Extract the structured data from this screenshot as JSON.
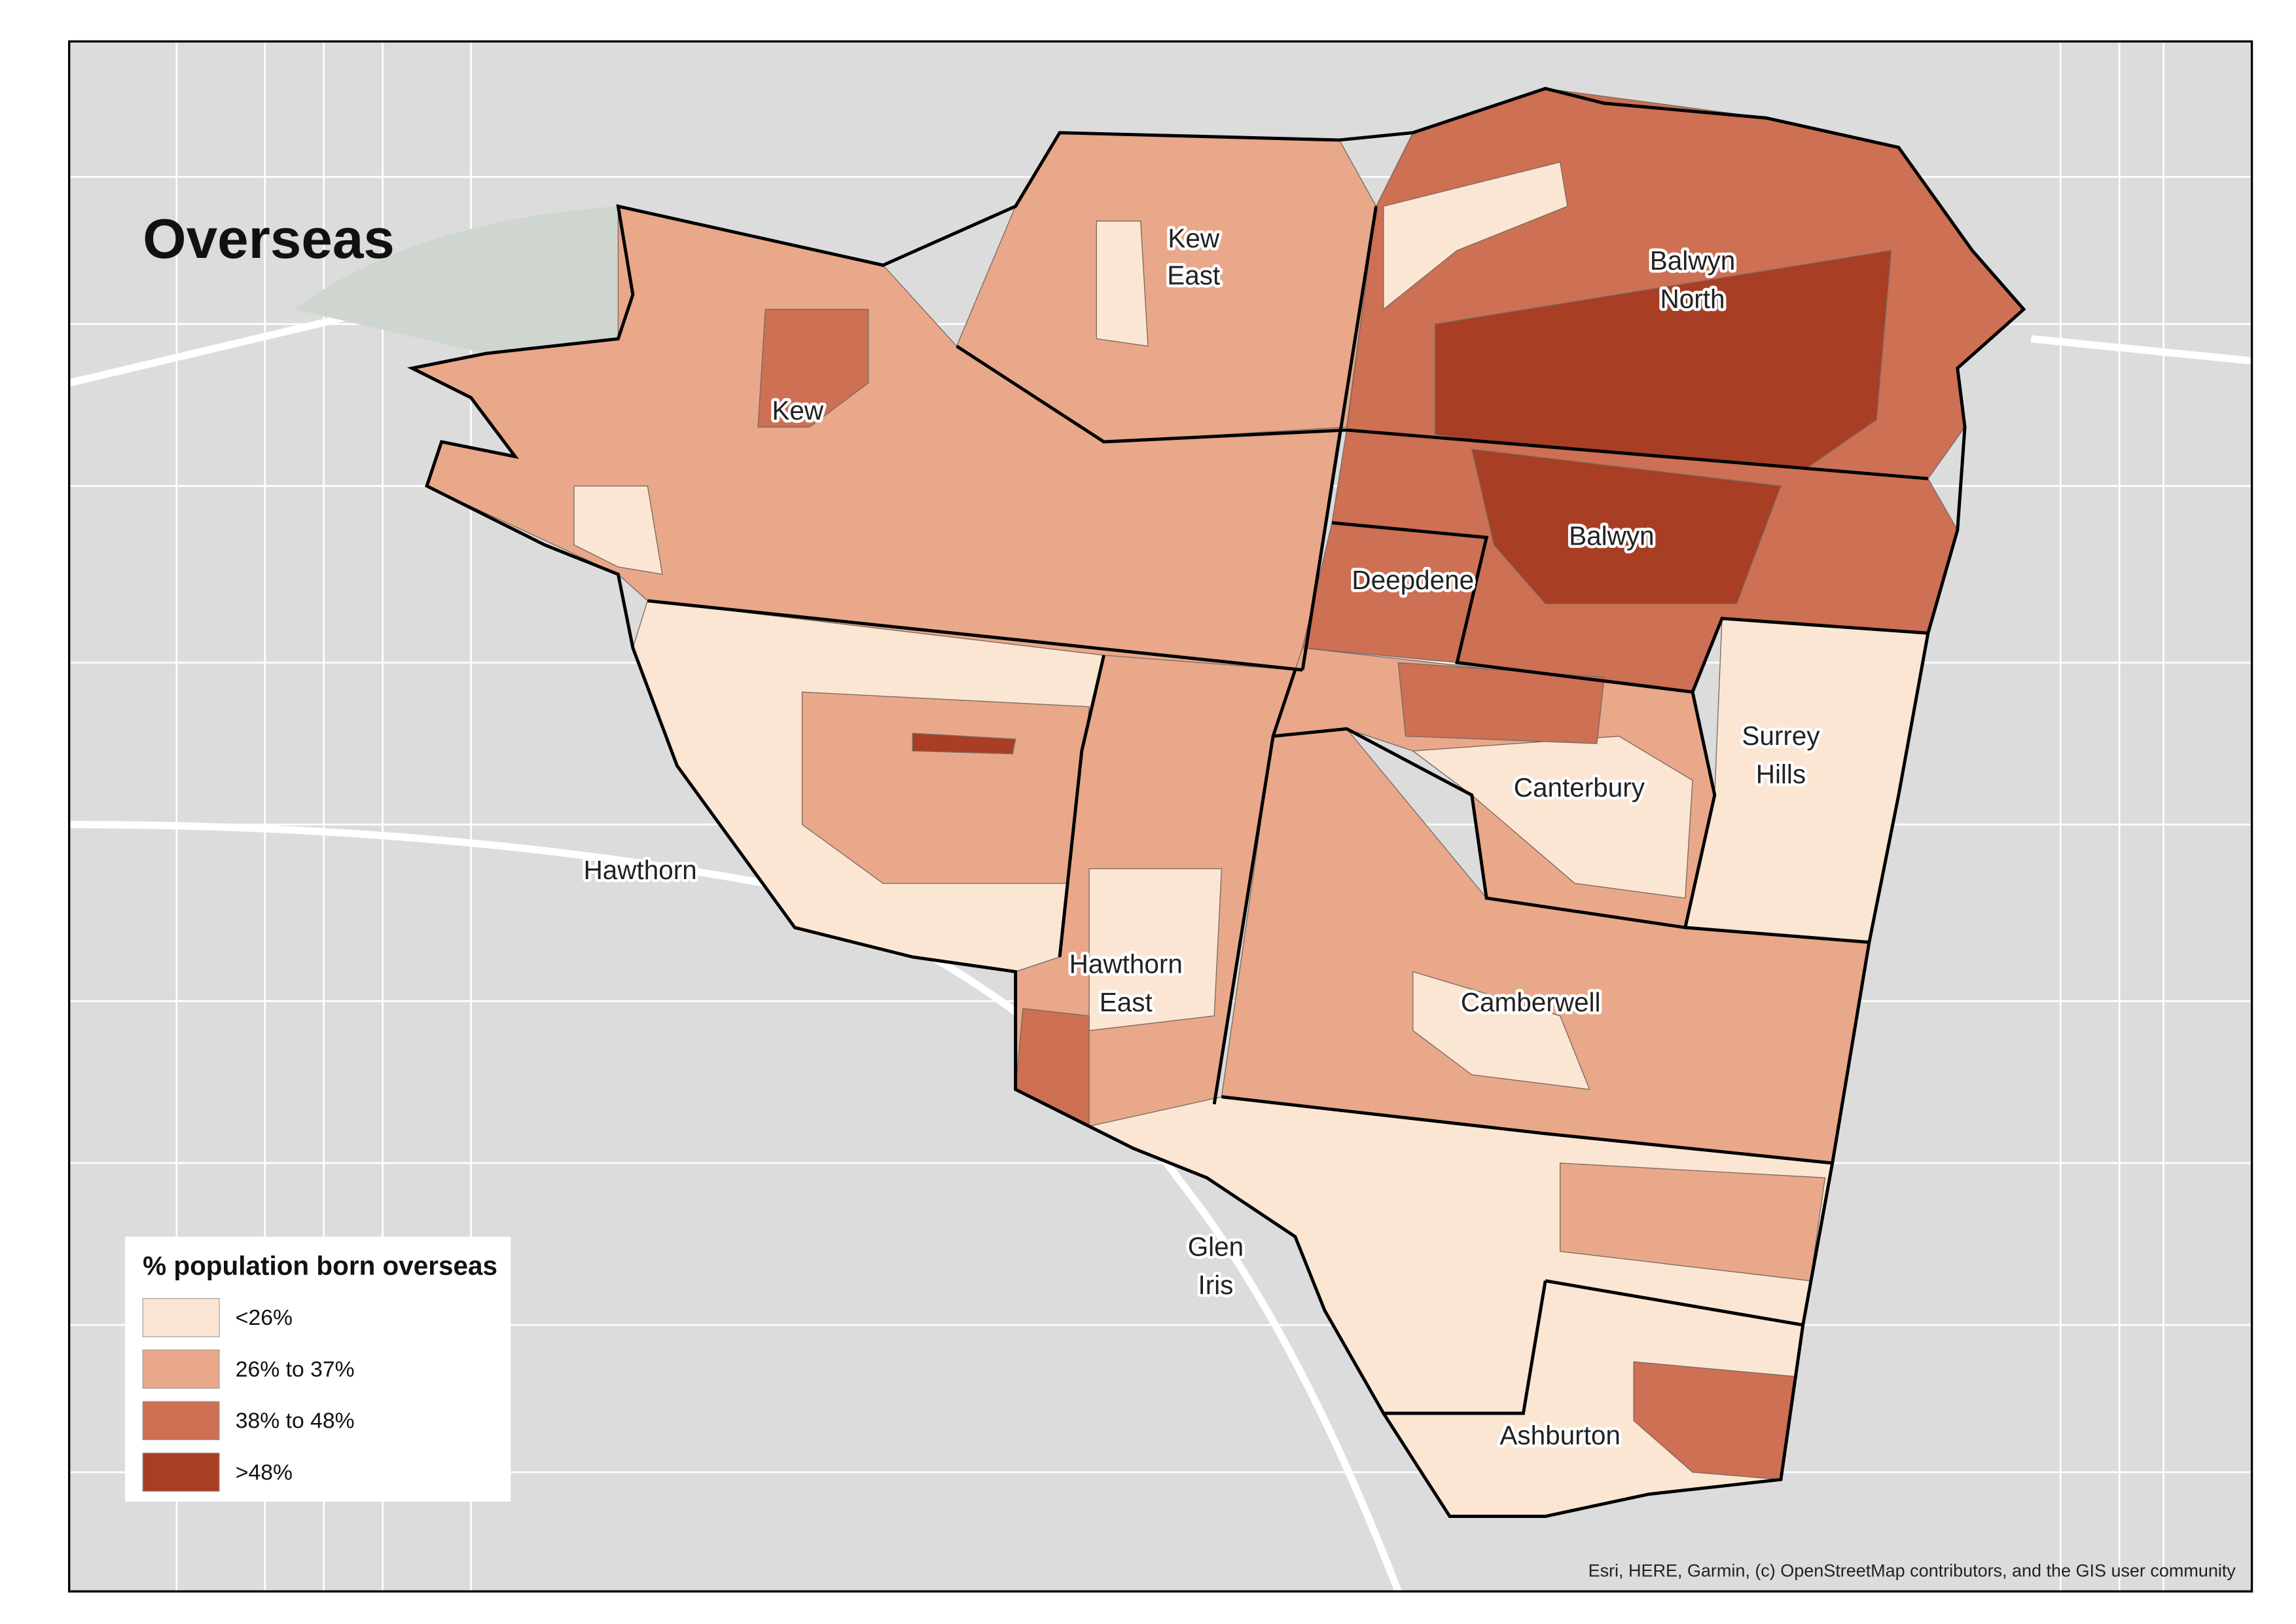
{
  "title": "Overseas",
  "labels": [
    [
      "Kew"
    ],
    [
      "Kew",
      "East"
    ],
    [
      "Balwyn",
      "North"
    ],
    [
      "Balwyn"
    ],
    [
      "Deepdene"
    ],
    [
      "Hawthorn"
    ],
    [
      "Surrey",
      "Hills"
    ],
    [
      "Canterbury"
    ],
    [
      "Hawthorn",
      "East"
    ],
    [
      "Camberwell"
    ],
    [
      "Glen",
      "Iris"
    ],
    [
      "Ashburton"
    ]
  ],
  "legend": {
    "title": "% population born overseas",
    "items": [
      {
        "label": "<26%",
        "color": "#fbe6d3"
      },
      {
        "label": "26% to 37%",
        "color": "#e9a88a"
      },
      {
        "label": "38% to 48%",
        "color": "#cd7053"
      },
      {
        "label": ">48%",
        "color": "#a83e24"
      }
    ]
  },
  "attribution": "Esri, HERE, Garmin, (c) OpenStreetMap contributors, and the GIS user community"
}
